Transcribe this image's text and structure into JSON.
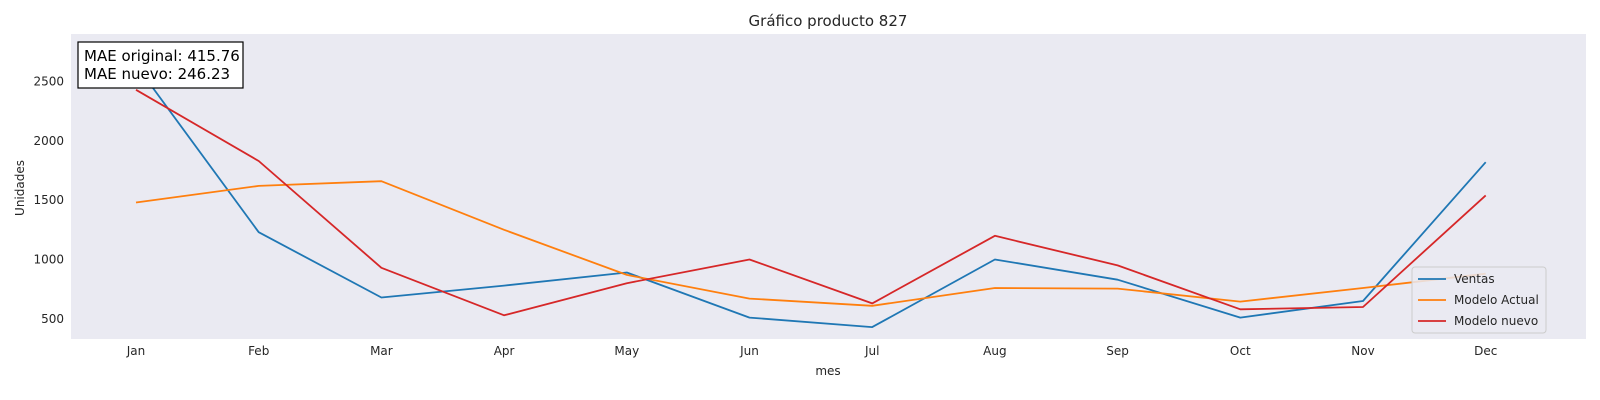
{
  "chart_data": {
    "type": "line",
    "title": "Gráfico producto 827",
    "xlabel": "mes",
    "ylabel": "Unidades",
    "categories": [
      "Jan",
      "Feb",
      "Mar",
      "Apr",
      "May",
      "Jun",
      "Jul",
      "Aug",
      "Sep",
      "Oct",
      "Nov",
      "Dec"
    ],
    "yticks": [
      500,
      1000,
      1500,
      2000,
      2500
    ],
    "ylim": [
      330,
      2900
    ],
    "grid": false,
    "legend_position": "bottom-right",
    "annotations": {
      "mae_original": "MAE original: 415.76",
      "mae_nuevo": "MAE nuevo: 246.23"
    },
    "series": [
      {
        "name": "Ventas",
        "color": "#1f77b4",
        "values": [
          2640,
          1230,
          680,
          780,
          890,
          510,
          430,
          1000,
          830,
          510,
          650,
          1820
        ]
      },
      {
        "name": "Modelo Actual",
        "color": "#ff7f0e",
        "values": [
          1480,
          1620,
          1660,
          1250,
          870,
          670,
          610,
          760,
          755,
          645,
          760,
          880
        ]
      },
      {
        "name": "Modelo nuevo",
        "color": "#d62728",
        "values": [
          2430,
          1830,
          930,
          530,
          800,
          1000,
          630,
          1200,
          950,
          580,
          600,
          1540
        ]
      }
    ]
  }
}
